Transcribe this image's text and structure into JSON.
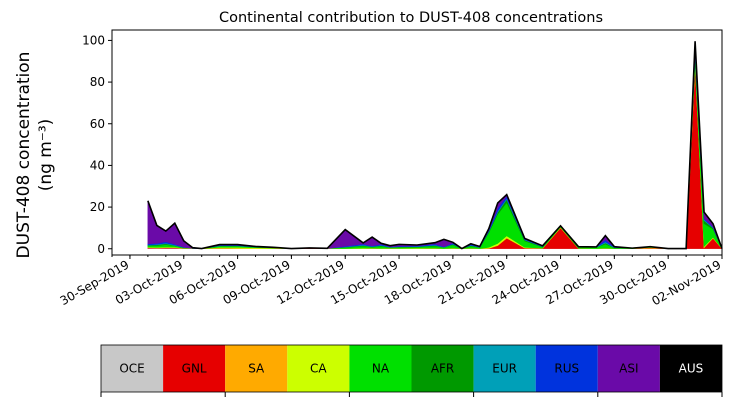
{
  "chart_data": {
    "type": "area",
    "stacked": true,
    "title": "Continental contribution to DUST-408 concentrations",
    "ylabel_line1": "DUST-408 concentration",
    "ylabel_line2": "(ng m⁻³)",
    "xlabel": "",
    "ylim": [
      -3,
      105
    ],
    "xlim": [
      "2019-09-29",
      "2019-11-02"
    ],
    "grid": false,
    "yticks": [
      0,
      20,
      40,
      60,
      80,
      100
    ],
    "xticks": [
      "2019-09-30",
      "2019-10-03",
      "2019-10-06",
      "2019-10-09",
      "2019-10-12",
      "2019-10-15",
      "2019-10-18",
      "2019-10-21",
      "2019-10-24",
      "2019-10-27",
      "2019-10-30",
      "2019-11-02"
    ],
    "xtick_labels": [
      "30-Sep-2019",
      "03-Oct-2019",
      "06-Oct-2019",
      "09-Oct-2019",
      "12-Oct-2019",
      "15-Oct-2019",
      "18-Oct-2019",
      "21-Oct-2019",
      "24-Oct-2019",
      "27-Oct-2019",
      "30-Oct-2019",
      "02-Nov-2019"
    ],
    "x": [
      "2019-10-01",
      "2019-10-01T12:00",
      "2019-10-02",
      "2019-10-02T12:00",
      "2019-10-03",
      "2019-10-03T12:00",
      "2019-10-04",
      "2019-10-05",
      "2019-10-06",
      "2019-10-07",
      "2019-10-08",
      "2019-10-09",
      "2019-10-10",
      "2019-10-11",
      "2019-10-12",
      "2019-10-13",
      "2019-10-13T12:00",
      "2019-10-14",
      "2019-10-14T12:00",
      "2019-10-15",
      "2019-10-16",
      "2019-10-17",
      "2019-10-17T12:00",
      "2019-10-18",
      "2019-10-18T12:00",
      "2019-10-19",
      "2019-10-19T12:00",
      "2019-10-20",
      "2019-10-20T12:00",
      "2019-10-21",
      "2019-10-22",
      "2019-10-23",
      "2019-10-24",
      "2019-10-25",
      "2019-10-26",
      "2019-10-26T12:00",
      "2019-10-27",
      "2019-10-28",
      "2019-10-29",
      "2019-10-30",
      "2019-10-31",
      "2019-10-31T12:00",
      "2019-11-01",
      "2019-11-01T12:00",
      "2019-11-02"
    ],
    "series": [
      {
        "name": "OCE",
        "color": "#c8c8c8",
        "values": [
          0.2,
          0.2,
          0.2,
          0.2,
          0.1,
          0.1,
          0.1,
          0.1,
          0.1,
          0.1,
          0.1,
          0.1,
          0.1,
          0.1,
          0.1,
          0.1,
          0.1,
          0.1,
          0.1,
          0.1,
          0.1,
          0.1,
          0.1,
          0.1,
          0.1,
          0.1,
          0.1,
          0.1,
          0.1,
          0.1,
          0.1,
          0.1,
          0.1,
          0.1,
          0.1,
          0.1,
          0.1,
          0.1,
          0.1,
          0.1,
          0.1,
          0.1,
          0.1,
          0.1,
          0.1
        ]
      },
      {
        "name": "GNL",
        "color": "#e60000",
        "values": [
          0.3,
          0.2,
          0.3,
          0.3,
          0.1,
          0,
          0,
          0.1,
          0,
          0,
          0,
          0,
          0.2,
          0.1,
          0,
          0,
          0.1,
          0,
          0.1,
          0,
          0,
          0.1,
          0,
          0.1,
          0,
          0.1,
          0,
          0.1,
          1.5,
          5,
          0.3,
          0.1,
          10,
          0.1,
          0,
          0.1,
          0,
          0,
          0.2,
          0,
          0,
          89,
          0.5,
          5,
          0
        ]
      },
      {
        "name": "SA",
        "color": "#ffaa00",
        "values": [
          0.1,
          0.1,
          0.1,
          0.1,
          0,
          0,
          0,
          0.1,
          0.1,
          0,
          0,
          0,
          0.1,
          0,
          0,
          0,
          0,
          0,
          0,
          0,
          0,
          0,
          0,
          0,
          0,
          0,
          0,
          0,
          0,
          0.1,
          0,
          0,
          0.1,
          0,
          0,
          0,
          0,
          0,
          0.2,
          0,
          0,
          0.2,
          0,
          0.1,
          0
        ]
      },
      {
        "name": "CA",
        "color": "#ccff00",
        "values": [
          0.2,
          0.2,
          0.2,
          0.2,
          0.1,
          0.1,
          0,
          0.4,
          0.5,
          0.4,
          0.2,
          0,
          0,
          0,
          0,
          0.2,
          0.1,
          0.1,
          0.1,
          0.1,
          0.2,
          0.1,
          0,
          0.2,
          0,
          0.1,
          0,
          0.5,
          1,
          1,
          0.3,
          0.1,
          0.2,
          0,
          0,
          0.1,
          0,
          0,
          0.2,
          0,
          0,
          0.3,
          0.5,
          0.3,
          0
        ]
      },
      {
        "name": "NA",
        "color": "#00e000",
        "values": [
          0.6,
          0.8,
          1.2,
          0.6,
          0.2,
          0,
          0,
          0.5,
          0.5,
          0.2,
          0.1,
          0,
          0,
          0,
          0.5,
          1,
          0.5,
          1,
          0.3,
          0.5,
          0.5,
          1,
          0.5,
          1.5,
          0,
          1,
          0.5,
          7,
          14,
          16,
          3,
          0.5,
          0.5,
          0.5,
          0.5,
          2,
          0.3,
          0.1,
          0.2,
          0,
          0,
          3,
          11,
          4,
          0
        ]
      },
      {
        "name": "AFR",
        "color": "#009900",
        "values": [
          0.3,
          0.4,
          0.4,
          0.2,
          0.1,
          0,
          0,
          0.2,
          0.2,
          0.1,
          0.1,
          0,
          0,
          0,
          0.2,
          0.3,
          0.2,
          0.3,
          0.1,
          0.2,
          0.2,
          0.3,
          0.1,
          0.3,
          0,
          0.3,
          0.1,
          0.5,
          1,
          1.5,
          0.5,
          0.2,
          0.1,
          0.1,
          0.1,
          0.5,
          0.1,
          0.1,
          0.1,
          0,
          0,
          1,
          1.5,
          0.5,
          0
        ]
      },
      {
        "name": "EUR",
        "color": "#00a0b8",
        "values": [
          0.2,
          0.2,
          0.3,
          0.2,
          0.1,
          0,
          0,
          0.1,
          0.1,
          0.1,
          0,
          0,
          0,
          0,
          0.1,
          0.2,
          0.1,
          0.2,
          0.1,
          0.1,
          0.1,
          0.2,
          0.1,
          0.1,
          0,
          0.1,
          0,
          0.2,
          0.4,
          0.5,
          0.2,
          0.1,
          0,
          0.1,
          0.1,
          0.5,
          0.1,
          0,
          0,
          0,
          0,
          0.5,
          0.5,
          0.2,
          0
        ]
      },
      {
        "name": "RUS",
        "color": "#0033dd",
        "values": [
          0.5,
          0.5,
          0.7,
          0.4,
          0.1,
          0,
          0,
          0.2,
          0.2,
          0.1,
          0.1,
          0,
          0,
          0,
          0.3,
          0.5,
          0.3,
          0.5,
          0.2,
          0.3,
          0.3,
          0.5,
          0.2,
          0.5,
          0,
          0.5,
          0.2,
          0.5,
          1.5,
          1,
          0.3,
          0.2,
          0,
          0.1,
          0.1,
          1,
          0.2,
          0,
          0,
          0,
          0,
          1,
          0.5,
          0.3,
          0
        ]
      },
      {
        "name": "ASI",
        "color": "#6a0aa8",
        "values": [
          20.5,
          8.5,
          5,
          10,
          3,
          0.3,
          0,
          0.3,
          0.3,
          0.1,
          0.1,
          0,
          0,
          0,
          8,
          0.5,
          4.2,
          0.4,
          0.5,
          0.8,
          0.4,
          0.6,
          3.5,
          0.3,
          0,
          0.2,
          0.2,
          0.7,
          2.5,
          0.8,
          0.3,
          0.1,
          0,
          0,
          0,
          2,
          0.2,
          0,
          0,
          0,
          0,
          4.5,
          3,
          1.5,
          0
        ]
      },
      {
        "name": "AUS",
        "color": "#000000",
        "values": [
          0.1,
          0.1,
          0.1,
          0.1,
          0,
          0,
          0,
          0,
          0,
          0,
          0,
          0,
          0,
          0,
          0,
          0,
          0,
          0,
          0,
          0,
          0,
          0,
          0,
          0,
          0,
          0,
          0,
          0,
          0,
          0,
          0,
          0,
          0,
          0,
          0,
          0,
          0,
          0,
          0,
          0,
          0,
          0,
          0,
          0,
          0
        ]
      }
    ],
    "legend": {
      "placement": "bottom",
      "labels": [
        "OCE",
        "GNL",
        "SA",
        "CA",
        "NA",
        "AFR",
        "EUR",
        "RUS",
        "ASI",
        "AUS"
      ],
      "label_colors": [
        "#000000",
        "#000000",
        "#000000",
        "#000000",
        "#000000",
        "#000000",
        "#000000",
        "#000000",
        "#000000",
        "#ffffff"
      ]
    }
  }
}
